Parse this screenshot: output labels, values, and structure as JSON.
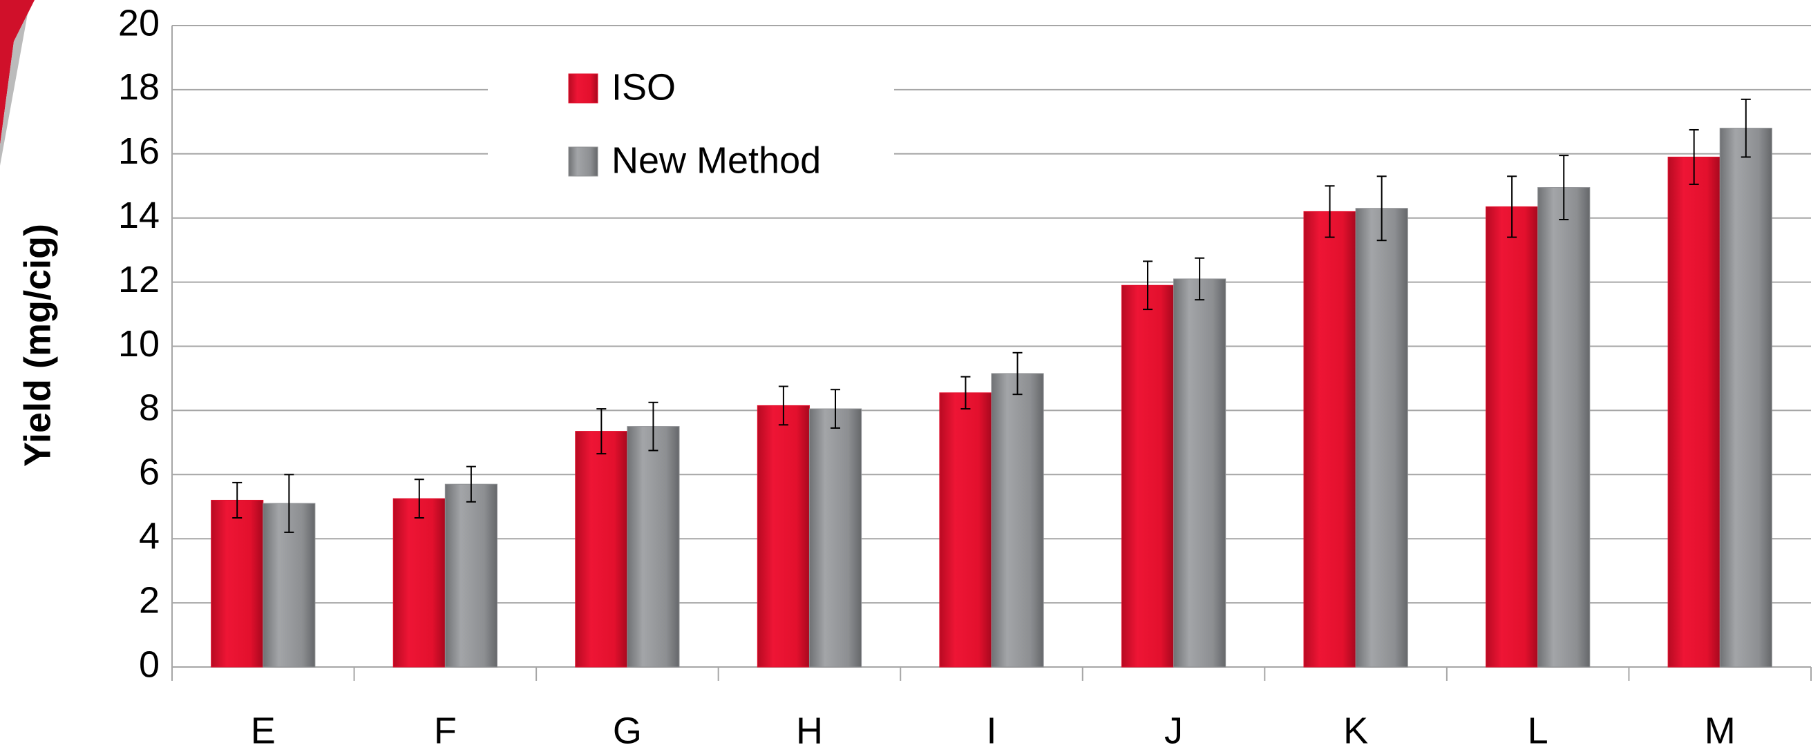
{
  "chart_data": {
    "type": "bar",
    "y_label": "Yield (mg/cig)",
    "categories": [
      "E",
      "F",
      "G",
      "H",
      "I",
      "J",
      "K",
      "L",
      "M"
    ],
    "series": [
      {
        "name": "ISO",
        "color": "#e3102d",
        "values": [
          5.2,
          5.25,
          7.35,
          8.15,
          8.55,
          11.9,
          14.2,
          14.35,
          15.9
        ],
        "errors": [
          0.55,
          0.6,
          0.7,
          0.6,
          0.5,
          0.75,
          0.8,
          0.95,
          0.85
        ]
      },
      {
        "name": "New Method",
        "color": "#8d8f92",
        "values": [
          5.1,
          5.7,
          7.5,
          8.05,
          9.15,
          12.1,
          14.3,
          14.95,
          16.8
        ],
        "errors": [
          0.9,
          0.55,
          0.75,
          0.6,
          0.65,
          0.65,
          1.0,
          1.0,
          0.9
        ]
      }
    ],
    "ylim": [
      0,
      20
    ],
    "yticks": [
      0,
      2,
      4,
      6,
      8,
      10,
      12,
      14,
      16,
      18,
      20
    ],
    "grid": true,
    "legend": "top-left"
  }
}
